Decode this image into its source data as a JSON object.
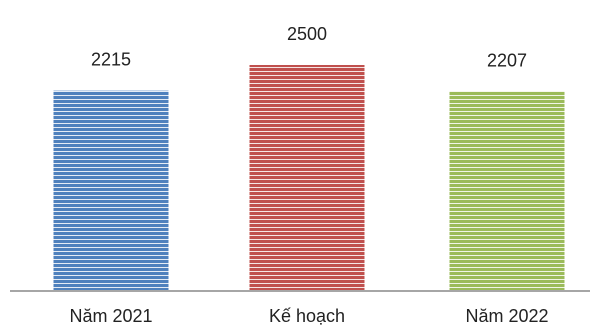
{
  "chart_data": {
    "type": "bar",
    "categories": [
      "Năm 2021",
      "Kế hoạch",
      "Năm 2022"
    ],
    "values": [
      2215,
      2500,
      2207
    ],
    "data_labels": [
      "2215",
      "2500",
      "2207"
    ],
    "ylim": [
      0,
      2500
    ],
    "grid": false,
    "legend": "none",
    "bar_fill": "striped-horizontal",
    "colors": {
      "bars": [
        "#4f81bd",
        "#c0504d",
        "#9bbb59"
      ],
      "stripe": "#ffffff",
      "axis": "#a6a6a6",
      "text": "#222222"
    }
  }
}
